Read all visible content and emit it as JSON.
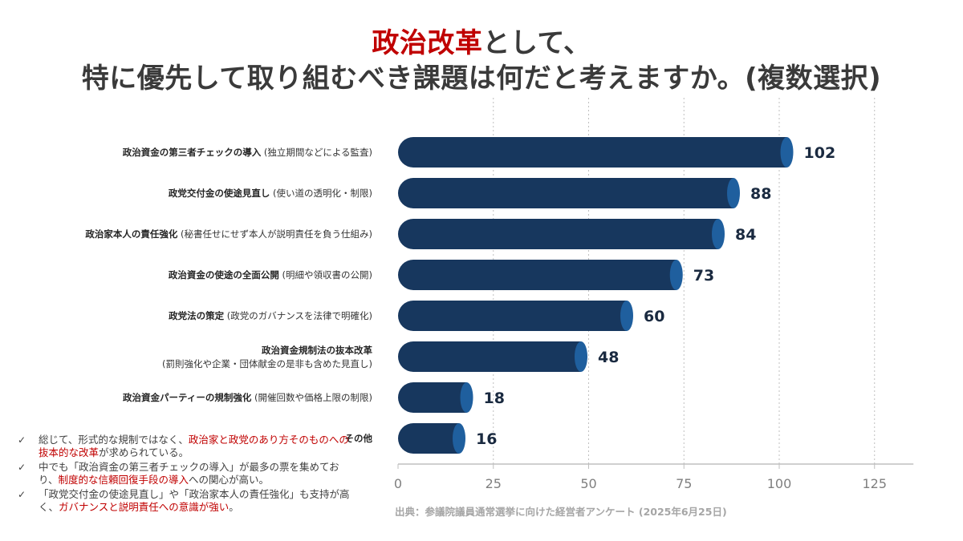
{
  "title": {
    "accent": "政治改革",
    "line1_rest": "として、",
    "line2": "特に優先して取り組むべき課題は何だと考えますか。(複数選択)"
  },
  "chart_data": {
    "type": "bar",
    "orientation": "horizontal",
    "categories": [
      {
        "main": "政治資金の第三者チェックの導入",
        "sub": "(独立期間などによる監査)",
        "layout": "inline"
      },
      {
        "main": "政党交付金の使途見直し",
        "sub": "(使い道の透明化・制限)",
        "layout": "inline"
      },
      {
        "main": "政治家本人の責任強化",
        "sub": "(秘書任せにせず本人が説明責任を負う仕組み)",
        "layout": "inline"
      },
      {
        "main": "政治資金の使途の全面公開",
        "sub": "(明細や領収書の公開)",
        "layout": "inline"
      },
      {
        "main": "政党法の策定",
        "sub": "(政党のガバナンスを法律で明確化)",
        "layout": "inline"
      },
      {
        "main": "政治資金規制法の抜本改革",
        "sub": "(罰則強化や企業・団体献金の是非も含めた見直し)",
        "layout": "stacked"
      },
      {
        "main": "政治資金パーティーの規制強化",
        "sub": "(開催回数や価格上限の制限)",
        "layout": "inline"
      },
      {
        "main": "その他",
        "sub": "",
        "layout": "inline"
      }
    ],
    "values": [
      102,
      88,
      84,
      73,
      60,
      48,
      18,
      16
    ],
    "xlim": [
      0,
      135
    ],
    "xticks": [
      0,
      25,
      50,
      75,
      100,
      125
    ],
    "grid": "vertical-dotted",
    "bar_color": "#17375e",
    "bar_cap_color": "#1f5f9e"
  },
  "notes": [
    [
      {
        "t": "総じて、形式的な規制ではなく、",
        "hl": false
      },
      {
        "t": "政治家と政党のあり方そのものへの抜本的な改革",
        "hl": true
      },
      {
        "t": "が求められている。",
        "hl": false
      }
    ],
    [
      {
        "t": "中でも「政治資金の第三者チェックの導入」が最多の票を集めており、",
        "hl": false
      },
      {
        "t": "制度的な信頼回復手段の導入",
        "hl": true
      },
      {
        "t": "への関心が高い。",
        "hl": false
      }
    ],
    [
      {
        "t": "「政党交付金の使途見直し」や「政治家本人の責任強化」も支持が高く、",
        "hl": false
      },
      {
        "t": "ガバナンスと説明責任への意識が強い",
        "hl": true
      },
      {
        "t": "。",
        "hl": false
      }
    ]
  ],
  "note_bullet": "✓",
  "source": "出典：参議院議員通常選挙に向けた経営者アンケート (2025年6月25日)",
  "colors": {
    "accent": "#c00000",
    "bar": "#17375e",
    "bar_cap": "#1f5f9e",
    "grid": "#bfbfbf",
    "tick": "#7f7f7f"
  }
}
